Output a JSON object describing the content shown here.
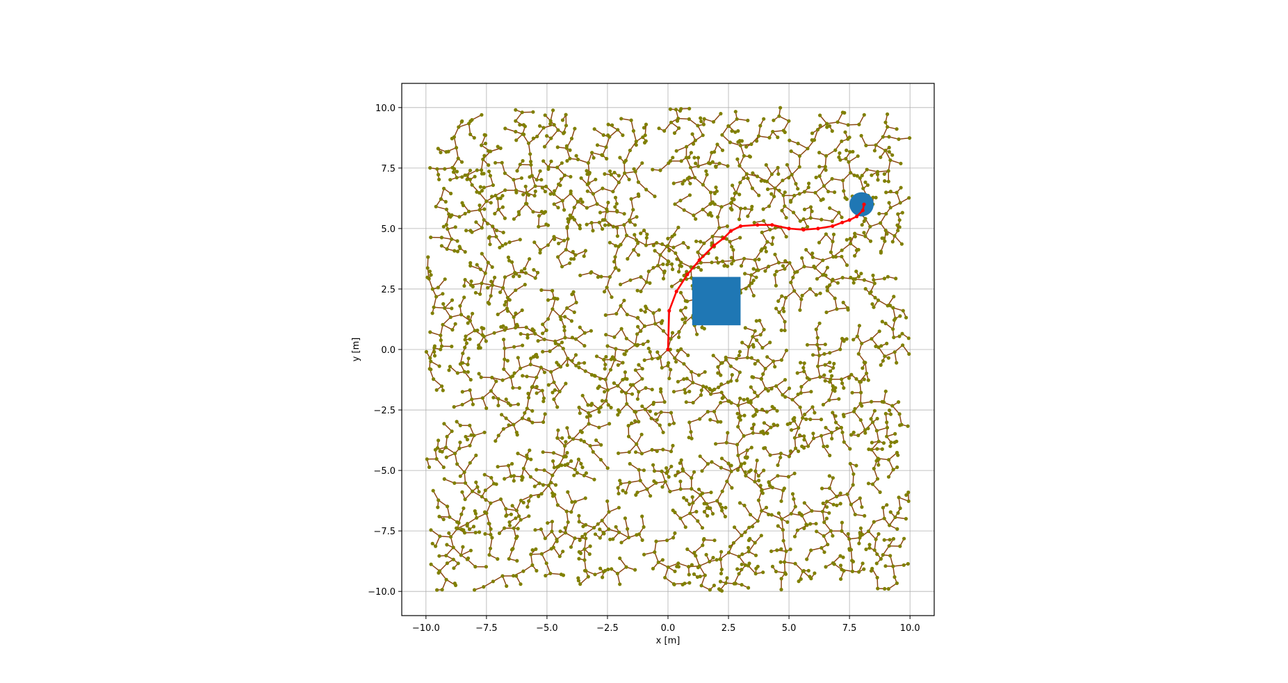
{
  "chart_data": {
    "type": "scatter",
    "xlabel": "x [m]",
    "ylabel": "y [m]",
    "xlim": [
      -11,
      11
    ],
    "ylim": [
      -11,
      11
    ],
    "xticks": [
      -10.0,
      -7.5,
      -5.0,
      -2.5,
      0.0,
      2.5,
      5.0,
      7.5,
      10.0
    ],
    "yticks": [
      -10.0,
      -7.5,
      -5.0,
      -2.5,
      0.0,
      2.5,
      5.0,
      7.5,
      10.0
    ],
    "xtick_labels": [
      "−10.0",
      "−7.5",
      "−5.0",
      "−2.5",
      "0.0",
      "2.5",
      "5.0",
      "7.5",
      "10.0"
    ],
    "ytick_labels": [
      "−10.0",
      "−7.5",
      "−5.0",
      "−2.5",
      "0.0",
      "2.5",
      "5.0",
      "7.5",
      "10.0"
    ],
    "grid": true,
    "tree": {
      "root": [
        0,
        0
      ],
      "bounds": [
        -10,
        10
      ],
      "edge_color": "#8b4513",
      "node_color": "#808000"
    },
    "obstacles": [
      {
        "shape": "rectangle",
        "x": [
          1.0,
          3.0
        ],
        "y": [
          1.0,
          3.0
        ],
        "color": "#1f77b4"
      },
      {
        "shape": "circle",
        "center": [
          8.0,
          6.0
        ],
        "radius": 0.5,
        "color": "#1f77b4"
      }
    ],
    "path": {
      "color": "#ff0000",
      "points": [
        [
          0.0,
          0.0
        ],
        [
          0.05,
          1.6
        ],
        [
          0.35,
          2.4
        ],
        [
          0.8,
          3.1
        ],
        [
          1.3,
          3.7
        ],
        [
          1.9,
          4.3
        ],
        [
          2.3,
          4.6
        ],
        [
          2.6,
          4.9
        ],
        [
          3.0,
          5.1
        ],
        [
          3.7,
          5.15
        ],
        [
          4.3,
          5.15
        ],
        [
          5.0,
          5.0
        ],
        [
          5.6,
          4.95
        ],
        [
          6.2,
          5.0
        ],
        [
          6.8,
          5.1
        ],
        [
          7.2,
          5.25
        ],
        [
          7.5,
          5.35
        ],
        [
          7.8,
          5.5
        ],
        [
          8.05,
          5.75
        ],
        [
          8.1,
          6.0
        ]
      ]
    }
  }
}
